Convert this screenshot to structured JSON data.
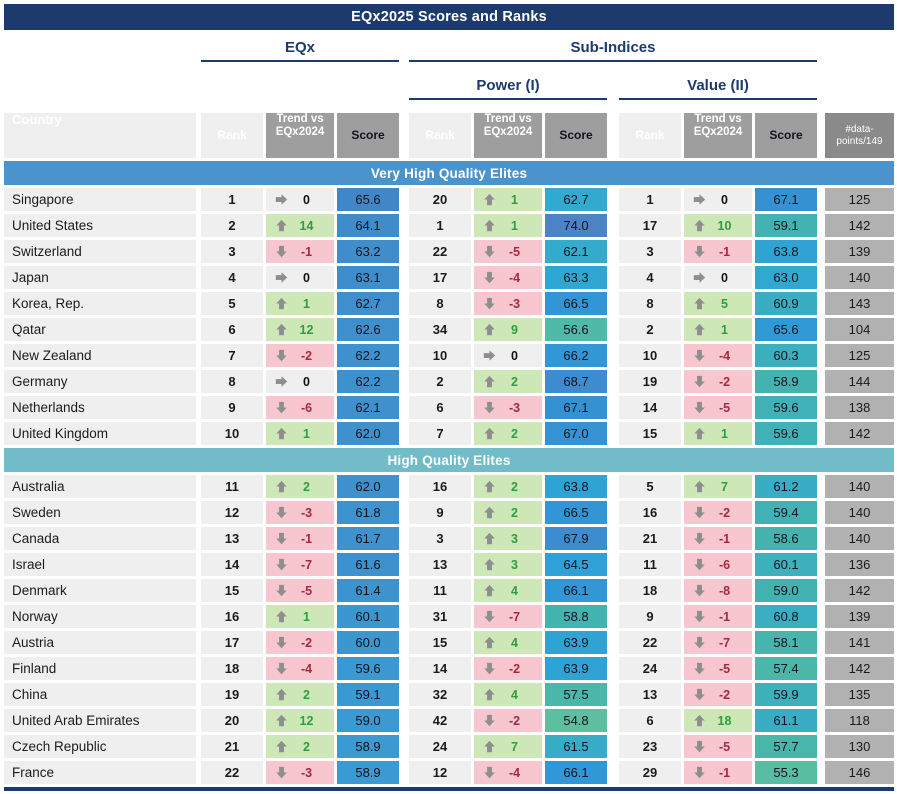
{
  "colors": {
    "navy": "#1d3a6d",
    "header_gray": "#9e9e9e",
    "dp_header_gray": "#8a8a8a",
    "dp_cell_gray": "#b1b1b1",
    "row_cell_bg": "#efeff0",
    "trend_up_bg": "#cde7b7",
    "trend_up_text": "#2f9e41",
    "trend_down_bg": "#f8c6cf",
    "trend_down_text": "#a32b3d",
    "trend_zero_bg": "#efeff0",
    "trend_zero_text": "#111111",
    "arrow_gray": "#8e8e8e",
    "eqx_score_scale": [
      [
        58.9,
        "#3b9ad2"
      ],
      [
        65.6,
        "#4187c7"
      ]
    ],
    "subindex_score_scale": [
      [
        54,
        "#63c19d"
      ],
      [
        57,
        "#4db8a8"
      ],
      [
        59,
        "#42b2b1"
      ],
      [
        60.5,
        "#3bafc0"
      ],
      [
        62,
        "#34abcb"
      ],
      [
        63.5,
        "#2fa6d3"
      ],
      [
        65,
        "#2f9ed8"
      ],
      [
        66.5,
        "#3295d5"
      ],
      [
        68,
        "#3d8cd0"
      ],
      [
        74,
        "#4b83c5"
      ]
    ]
  },
  "chart_data": {
    "type": "table",
    "title": "EQx2025 Scores and Ranks",
    "column_groups": {
      "eqx": "EQx",
      "sub_indices": "Sub-Indices",
      "power": "Power (I)",
      "value": "Value (II)"
    },
    "columns": {
      "country": "Country",
      "rank": "Rank",
      "trend_line1": "Trend vs",
      "trend_line2": "EQx2024",
      "score": "Score",
      "datapoints_line1": "#data-",
      "datapoints_line2": "points/149"
    },
    "row_schema": "eqx/power/value arrays are [rank, trend_vs_EQx2024, score]; dp is #data-points/149",
    "sections": [
      {
        "label": "Very High Quality Elites",
        "color": "#4b94cb",
        "rows": [
          {
            "country": "Singapore",
            "eqx": [
              1,
              0,
              65.6
            ],
            "power": [
              20,
              1,
              62.7
            ],
            "value": [
              1,
              0,
              67.1
            ],
            "dp": 125
          },
          {
            "country": "United States",
            "eqx": [
              2,
              14,
              64.1
            ],
            "power": [
              1,
              1,
              74.0
            ],
            "value": [
              17,
              10,
              59.1
            ],
            "dp": 142
          },
          {
            "country": "Switzerland",
            "eqx": [
              3,
              -1,
              63.2
            ],
            "power": [
              22,
              -5,
              62.1
            ],
            "value": [
              3,
              -1,
              63.8
            ],
            "dp": 139
          },
          {
            "country": "Japan",
            "eqx": [
              4,
              0,
              63.1
            ],
            "power": [
              17,
              -4,
              63.3
            ],
            "value": [
              4,
              0,
              63.0
            ],
            "dp": 140
          },
          {
            "country": "Korea, Rep.",
            "eqx": [
              5,
              1,
              62.7
            ],
            "power": [
              8,
              -3,
              66.5
            ],
            "value": [
              8,
              5,
              60.9
            ],
            "dp": 143
          },
          {
            "country": "Qatar",
            "eqx": [
              6,
              12,
              62.6
            ],
            "power": [
              34,
              9,
              56.6
            ],
            "value": [
              2,
              1,
              65.6
            ],
            "dp": 104
          },
          {
            "country": "New Zealand",
            "eqx": [
              7,
              -2,
              62.2
            ],
            "power": [
              10,
              0,
              66.2
            ],
            "value": [
              10,
              -4,
              60.3
            ],
            "dp": 125
          },
          {
            "country": "Germany",
            "eqx": [
              8,
              0,
              62.2
            ],
            "power": [
              2,
              2,
              68.7
            ],
            "value": [
              19,
              -2,
              58.9
            ],
            "dp": 144
          },
          {
            "country": "Netherlands",
            "eqx": [
              9,
              -6,
              62.1
            ],
            "power": [
              6,
              -3,
              67.1
            ],
            "value": [
              14,
              -5,
              59.6
            ],
            "dp": 138
          },
          {
            "country": "United Kingdom",
            "eqx": [
              10,
              1,
              62.0
            ],
            "power": [
              7,
              2,
              67.0
            ],
            "value": [
              15,
              1,
              59.6
            ],
            "dp": 142
          }
        ]
      },
      {
        "label": "High Quality Elites",
        "color": "#72bbc8",
        "rows": [
          {
            "country": "Australia",
            "eqx": [
              11,
              2,
              62.0
            ],
            "power": [
              16,
              2,
              63.8
            ],
            "value": [
              5,
              7,
              61.2
            ],
            "dp": 140
          },
          {
            "country": "Sweden",
            "eqx": [
              12,
              -3,
              61.8
            ],
            "power": [
              9,
              2,
              66.5
            ],
            "value": [
              16,
              -2,
              59.4
            ],
            "dp": 140
          },
          {
            "country": "Canada",
            "eqx": [
              13,
              -1,
              61.7
            ],
            "power": [
              3,
              3,
              67.9
            ],
            "value": [
              21,
              -1,
              58.6
            ],
            "dp": 140
          },
          {
            "country": "Israel",
            "eqx": [
              14,
              -7,
              61.6
            ],
            "power": [
              13,
              3,
              64.5
            ],
            "value": [
              11,
              -6,
              60.1
            ],
            "dp": 136
          },
          {
            "country": "Denmark",
            "eqx": [
              15,
              -5,
              61.4
            ],
            "power": [
              11,
              4,
              66.1
            ],
            "value": [
              18,
              -8,
              59.0
            ],
            "dp": 142
          },
          {
            "country": "Norway",
            "eqx": [
              16,
              1,
              60.1
            ],
            "power": [
              31,
              -7,
              58.8
            ],
            "value": [
              9,
              -1,
              60.8
            ],
            "dp": 139
          },
          {
            "country": "Austria",
            "eqx": [
              17,
              -2,
              60.0
            ],
            "power": [
              15,
              4,
              63.9
            ],
            "value": [
              22,
              -7,
              58.1
            ],
            "dp": 141
          },
          {
            "country": "Finland",
            "eqx": [
              18,
              -4,
              59.6
            ],
            "power": [
              14,
              -2,
              63.9
            ],
            "value": [
              24,
              -5,
              57.4
            ],
            "dp": 142
          },
          {
            "country": "China",
            "eqx": [
              19,
              2,
              59.1
            ],
            "power": [
              32,
              4,
              57.5
            ],
            "value": [
              13,
              -2,
              59.9
            ],
            "dp": 135
          },
          {
            "country": "United Arab Emirates",
            "eqx": [
              20,
              12,
              59.0
            ],
            "power": [
              42,
              -2,
              54.8
            ],
            "value": [
              6,
              18,
              61.1
            ],
            "dp": 118
          },
          {
            "country": "Czech Republic",
            "eqx": [
              21,
              2,
              58.9
            ],
            "power": [
              24,
              7,
              61.5
            ],
            "value": [
              23,
              -5,
              57.7
            ],
            "dp": 130
          },
          {
            "country": "France",
            "eqx": [
              22,
              -3,
              58.9
            ],
            "power": [
              12,
              -4,
              66.1
            ],
            "value": [
              29,
              -1,
              55.3
            ],
            "dp": 146
          }
        ]
      }
    ]
  }
}
